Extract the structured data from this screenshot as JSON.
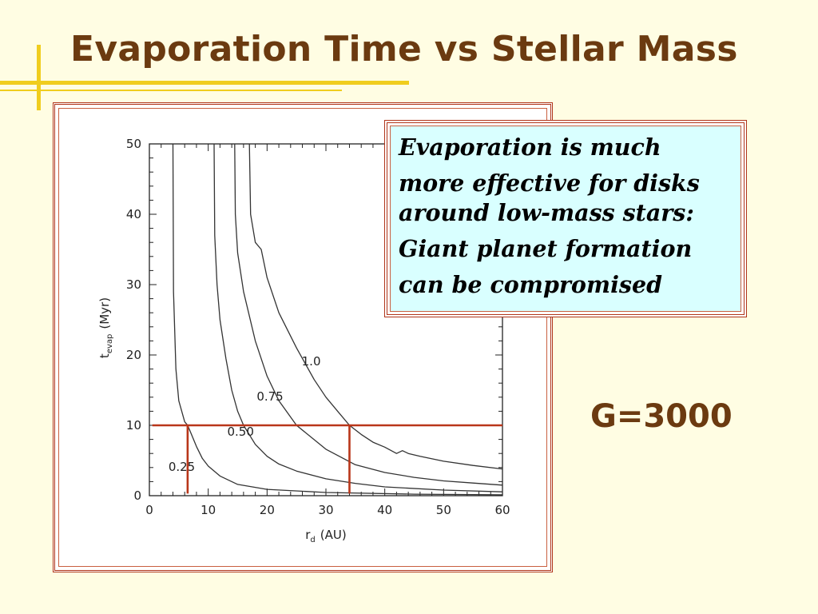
{
  "slide": {
    "title": "Evaporation Time vs Stellar Mass",
    "callout_lines": [
      "Evaporation is much",
      "more effective for disks",
      "around low-mass stars:",
      "Giant planet formation",
      "can be compromised"
    ],
    "g_value": "G=3000",
    "colors": {
      "title": "#6b3a10",
      "accent": "#f0cd1e",
      "frame": "#b0351a",
      "callout_bg": "#d9ffff",
      "marker": "#b9361a"
    }
  },
  "chart_data": {
    "type": "line",
    "xlabel_main": "r",
    "xlabel_sub": "d",
    "xlabel_unit": "(AU)",
    "ylabel_main": "t",
    "ylabel_sub": "evap",
    "ylabel_unit": "(Myr)",
    "xlim": [
      0,
      60
    ],
    "ylim": [
      0,
      50
    ],
    "xticks": [
      0,
      10,
      20,
      30,
      40,
      50,
      60
    ],
    "yticks": [
      0,
      10,
      20,
      30,
      40,
      50
    ],
    "grid": false,
    "series": [
      {
        "name": "0.25",
        "x": [
          4,
          4.1,
          4.5,
          5,
          6,
          6.5,
          7,
          8,
          9,
          10,
          12,
          15,
          20,
          30,
          45,
          60
        ],
        "y": [
          50,
          29,
          18,
          13.5,
          10.5,
          10,
          9,
          7,
          5.3,
          4.2,
          2.8,
          1.6,
          0.9,
          0.45,
          0.22,
          0.12
        ]
      },
      {
        "name": "0.50",
        "x": [
          11,
          11.1,
          11.5,
          12,
          13,
          14,
          15,
          16,
          18,
          20,
          22,
          25,
          30,
          35,
          40,
          50,
          60
        ],
        "y": [
          50,
          37,
          30,
          25,
          19.5,
          15,
          12,
          10,
          7.3,
          5.6,
          4.5,
          3.5,
          2.4,
          1.75,
          1.25,
          0.8,
          0.55
        ]
      },
      {
        "name": "0.75",
        "x": [
          14.5,
          14.6,
          15,
          16,
          18,
          20,
          22,
          25,
          30,
          35,
          40,
          45,
          50,
          55,
          60
        ],
        "y": [
          50,
          40,
          34.5,
          29,
          22,
          17,
          13.5,
          10,
          6.6,
          4.4,
          3.3,
          2.6,
          2.1,
          1.8,
          1.5
        ]
      },
      {
        "name": "1.0",
        "x": [
          17,
          17.2,
          18,
          19,
          20,
          22,
          25,
          28,
          30,
          32,
          34,
          36,
          38,
          40,
          42,
          43,
          44,
          46,
          50,
          55,
          60
        ],
        "y": [
          50,
          40,
          36,
          35,
          31,
          26,
          21,
          16.5,
          14,
          12,
          10,
          8.7,
          7.6,
          6.9,
          6,
          6.4,
          6,
          5.6,
          4.9,
          4.3,
          3.8
        ]
      }
    ],
    "annotations": {
      "hline_y": 10,
      "vlines_x": [
        6.5,
        34
      ]
    }
  }
}
